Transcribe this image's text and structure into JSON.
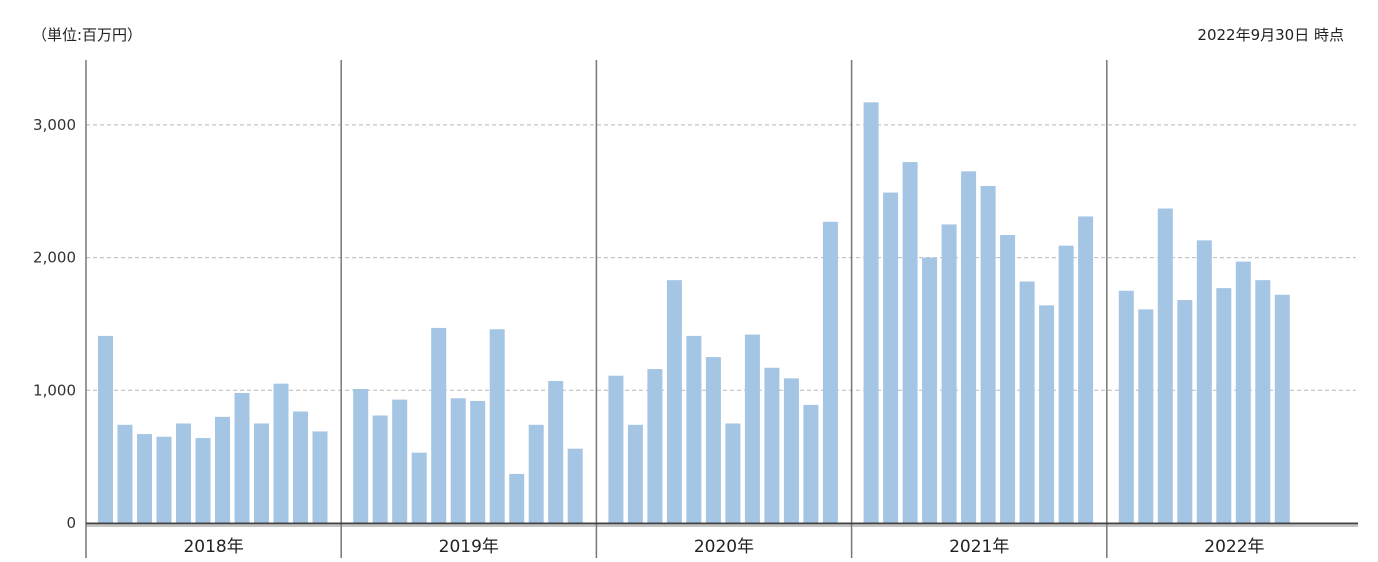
{
  "header": {
    "unit_label": "（単位:百万円）",
    "as_of_label": "2022年9月30日 時点"
  },
  "colors": {
    "bar": "#a4c5e4",
    "axis": "#555555",
    "grid": "#bbbbbb"
  },
  "chart_data": {
    "type": "bar",
    "ylim": [
      0,
      3500
    ],
    "yticks": [
      0,
      1000,
      2000,
      3000
    ],
    "ytick_labels": [
      "0",
      "1,000",
      "2,000",
      "3,000"
    ],
    "grid": true,
    "groups": [
      {
        "label": "2018年",
        "values": [
          1410,
          740,
          670,
          650,
          750,
          640,
          800,
          980,
          750,
          1050,
          840,
          690
        ]
      },
      {
        "label": "2019年",
        "values": [
          1010,
          810,
          930,
          530,
          1470,
          940,
          920,
          1460,
          370,
          740,
          1070,
          560
        ]
      },
      {
        "label": "2020年",
        "values": [
          1110,
          740,
          1160,
          1830,
          1410,
          1250,
          750,
          1420,
          1170,
          1090,
          890,
          2270
        ]
      },
      {
        "label": "2021年",
        "values": [
          3170,
          2490,
          2720,
          2000,
          2250,
          2650,
          2540,
          2170,
          1820,
          1640,
          2090,
          2310
        ]
      },
      {
        "label": "2022年",
        "values": [
          1750,
          1610,
          2370,
          1680,
          2130,
          1770,
          1970,
          1830,
          1720
        ]
      }
    ]
  }
}
